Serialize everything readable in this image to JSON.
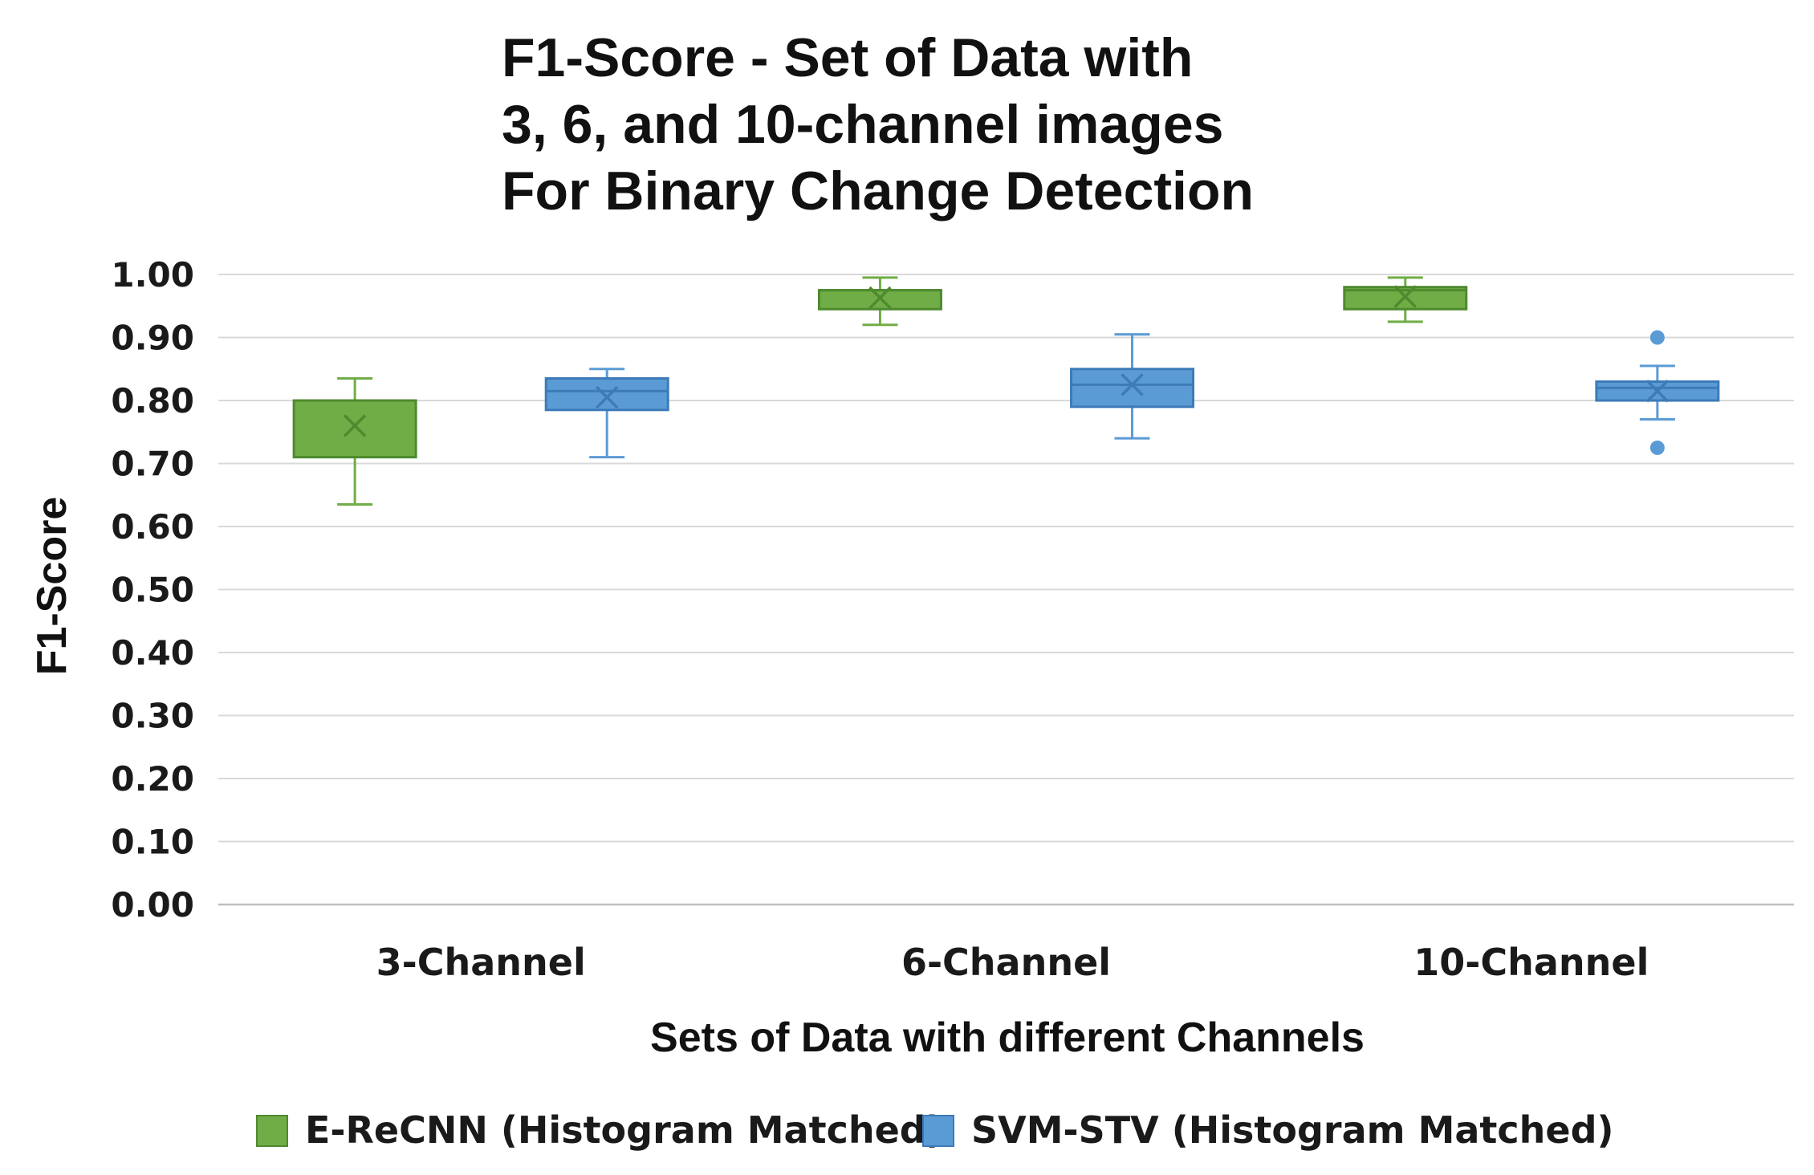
{
  "chart_data": {
    "type": "box",
    "title_lines": [
      "F1-Score - Set of Data with",
      "3, 6, and 10-channel images",
      "For Binary Change Detection"
    ],
    "xlabel": "Sets of Data with different Channels",
    "ylabel": "F1-Score",
    "ylim": [
      0,
      1
    ],
    "yticks": [
      "0.00",
      "0.10",
      "0.20",
      "0.30",
      "0.40",
      "0.50",
      "0.60",
      "0.70",
      "0.80",
      "0.90",
      "1.00"
    ],
    "categories": [
      "3-Channel",
      "6-Channel",
      "10-Channel"
    ],
    "grid": true,
    "legend_position": "bottom",
    "series": [
      {
        "name": "E-ReCNN (Histogram Matched)",
        "color": "#70ad47",
        "edge": "#4e8a2e",
        "boxes": [
          {
            "whisker_low": 0.635,
            "q1": 0.71,
            "median": 0.8,
            "q3": 0.8,
            "whisker_high": 0.835,
            "mean": 0.76,
            "outliers": []
          },
          {
            "whisker_low": 0.92,
            "q1": 0.945,
            "median": 0.975,
            "q3": 0.975,
            "whisker_high": 0.995,
            "mean": 0.963,
            "outliers": []
          },
          {
            "whisker_low": 0.925,
            "q1": 0.945,
            "median": 0.975,
            "q3": 0.98,
            "whisker_high": 0.995,
            "mean": 0.965,
            "outliers": []
          }
        ]
      },
      {
        "name": "SVM-STV (Histogram Matched)",
        "color": "#5b9bd5",
        "edge": "#3c7bb8",
        "boxes": [
          {
            "whisker_low": 0.71,
            "q1": 0.785,
            "median": 0.815,
            "q3": 0.835,
            "whisker_high": 0.85,
            "mean": 0.805,
            "outliers": []
          },
          {
            "whisker_low": 0.74,
            "q1": 0.79,
            "median": 0.825,
            "q3": 0.85,
            "whisker_high": 0.905,
            "mean": 0.825,
            "outliers": []
          },
          {
            "whisker_low": 0.77,
            "q1": 0.8,
            "median": 0.82,
            "q3": 0.83,
            "whisker_high": 0.855,
            "mean": 0.815,
            "outliers": [
              0.9,
              0.725
            ]
          }
        ]
      }
    ]
  }
}
